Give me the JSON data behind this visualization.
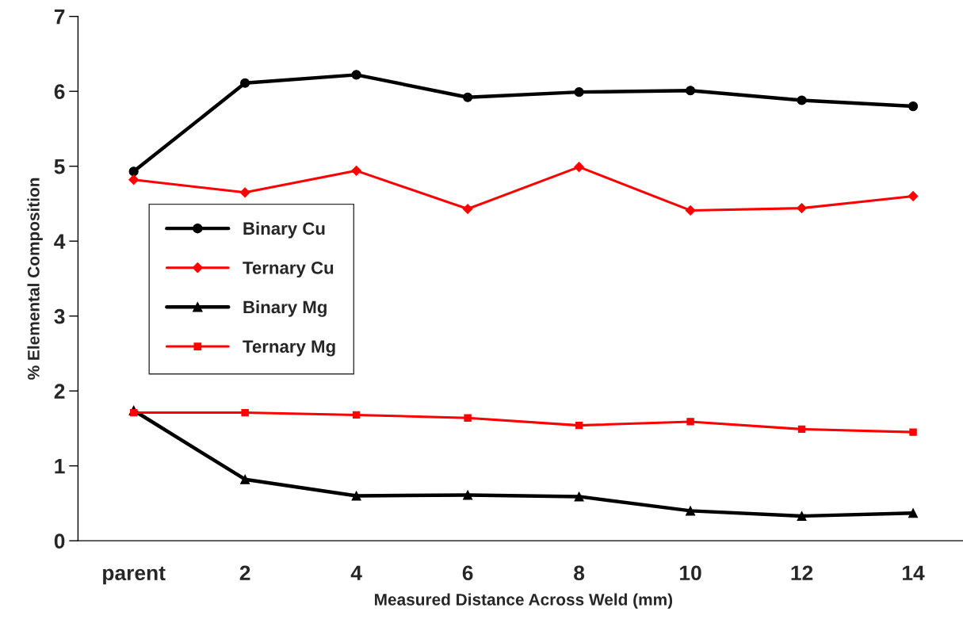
{
  "chart_data": {
    "type": "line",
    "xlabel": "Measured Distance Across Weld (mm)",
    "ylabel": "% Elemental Composition",
    "categories": [
      "parent",
      "2",
      "4",
      "6",
      "8",
      "10",
      "12",
      "14"
    ],
    "series": [
      {
        "name": "Binary Cu",
        "color": "#000000",
        "marker": "circle",
        "values": [
          4.93,
          6.11,
          6.22,
          5.92,
          5.99,
          6.01,
          5.88,
          5.8
        ]
      },
      {
        "name": "Ternary Cu",
        "color": "#ff0000",
        "marker": "diamond",
        "values": [
          4.82,
          4.65,
          4.94,
          4.43,
          4.99,
          4.41,
          4.44,
          4.6
        ]
      },
      {
        "name": "Binary Mg",
        "color": "#000000",
        "marker": "triangle",
        "values": [
          1.74,
          0.82,
          0.6,
          0.61,
          0.59,
          0.4,
          0.33,
          0.37
        ]
      },
      {
        "name": "Ternary Mg",
        "color": "#ff0000",
        "marker": "square",
        "values": [
          1.71,
          1.71,
          1.68,
          1.64,
          1.54,
          1.59,
          1.49,
          1.45
        ]
      }
    ],
    "ylim": [
      0,
      7
    ],
    "yticks": [
      0,
      1,
      2,
      3,
      4,
      5,
      6,
      7
    ],
    "grid": false,
    "legend": "center left",
    "line_style": "solid"
  }
}
